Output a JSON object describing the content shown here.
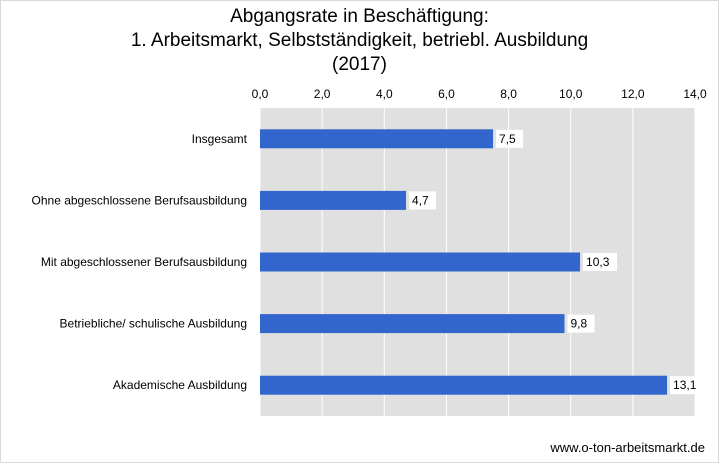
{
  "chart_data": {
    "type": "bar",
    "orientation": "horizontal",
    "title_lines": [
      "Abgangsrate in Beschäftigung:",
      "1. Arbeitsmarkt, Selbstständigkeit, betriebl. Ausbildung",
      "(2017)"
    ],
    "categories": [
      "Insgesamt",
      "Ohne abgeschlossene Berufsausbildung",
      "Mit abgeschlossener Berufsausbildung",
      "Betriebliche/ schulische Ausbildung",
      "Akademische Ausbildung"
    ],
    "values": [
      7.5,
      4.7,
      10.3,
      9.8,
      13.1
    ],
    "data_labels": [
      "7,5",
      "4,7",
      "10,3",
      "9,8",
      "13,1"
    ],
    "xlim": [
      0,
      14
    ],
    "x_ticks": [
      0,
      2,
      4,
      6,
      8,
      10,
      12,
      14
    ],
    "x_tick_labels": [
      "0,0",
      "2,0",
      "4,0",
      "6,0",
      "8,0",
      "10,0",
      "12,0",
      "14,0"
    ],
    "x_axis_position": "top",
    "grid": true,
    "colors": {
      "bar": "#3366cc",
      "plot_background": "#e0e0e0",
      "grid": "#ffffff"
    }
  },
  "footer": "www.o-ton-arbeitsmarkt.de"
}
